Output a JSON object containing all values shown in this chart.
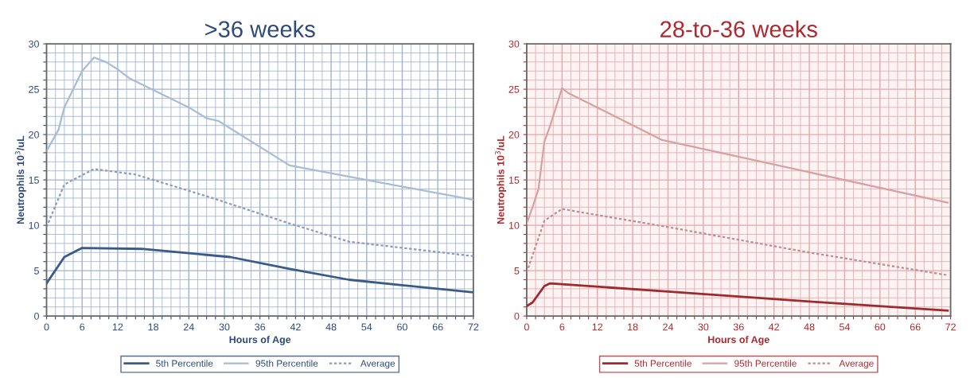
{
  "chart_data": [
    {
      "type": "line",
      "title": ">36 weeks",
      "xlabel": "Hours of Age",
      "ylabel": "Neutrophils 10$^{3}$/uL",
      "xlim": [
        0,
        72
      ],
      "xticks": [
        0,
        {
          "value": 1.5,
          "label": null
        },
        {
          "value": 3,
          "label": null
        },
        {
          "value": 4.5,
          "label": null
        },
        6,
        {
          "value": 7.5,
          "label": null
        },
        {
          "value": 9,
          "label": null
        },
        {
          "value": 10.5,
          "label": null
        },
        12,
        {
          "value": 13.5,
          "label": null
        },
        {
          "value": 15,
          "label": null
        },
        {
          "value": 16.5,
          "label": null
        },
        18,
        {
          "value": 19.5,
          "label": null
        },
        {
          "value": 21,
          "label": null
        },
        {
          "value": 22.5,
          "label": null
        },
        24,
        {
          "value": 25.5,
          "label": null
        },
        {
          "value": 27,
          "label": null
        },
        {
          "value": 28.5,
          "label": null
        },
        30,
        {
          "value": 31.5,
          "label": null
        },
        {
          "value": 33,
          "label": null
        },
        {
          "value": 34.5,
          "label": null
        },
        36,
        {
          "value": 37.5,
          "label": null
        },
        {
          "value": 39,
          "label": null
        },
        {
          "value": 40.5,
          "label": null
        },
        42,
        {
          "value": 43.5,
          "label": null
        },
        {
          "value": 45,
          "label": null
        },
        {
          "value": 46.5,
          "label": null
        },
        48,
        {
          "value": 49.5,
          "label": null
        },
        {
          "value": 51,
          "label": null
        },
        {
          "value": 52.5,
          "label": null
        },
        54,
        {
          "value": 55.5,
          "label": null
        },
        {
          "value": 57,
          "label": null
        },
        {
          "value": 58.5,
          "label": null
        },
        60,
        {
          "value": 61.5,
          "label": null
        },
        {
          "value": 63,
          "label": null
        },
        {
          "value": 64.5,
          "label": null
        },
        66,
        {
          "value": 67.5,
          "label": null
        },
        {
          "value": 69,
          "label": null
        },
        {
          "value": 70.5,
          "label": null
        },
        72
      ],
      "ylim": [
        0,
        30
      ],
      "yticks": [
        0,
        {
          "value": 1,
          "label": null
        },
        {
          "value": 2,
          "label": null
        },
        {
          "value": 3,
          "label": null
        },
        {
          "value": 4,
          "label": null
        },
        5,
        {
          "value": 6,
          "label": null
        },
        {
          "value": 7,
          "label": null
        },
        {
          "value": 8,
          "label": null
        },
        {
          "value": 9,
          "label": null
        },
        10,
        {
          "value": 11,
          "label": null
        },
        {
          "value": 12,
          "label": null
        },
        {
          "value": 13,
          "label": null
        },
        {
          "value": 14,
          "label": null
        },
        15,
        {
          "value": 16,
          "label": null
        },
        {
          "value": 17,
          "label": null
        },
        {
          "value": 18,
          "label": null
        },
        {
          "value": 19,
          "label": null
        },
        20,
        {
          "value": 21,
          "label": null
        },
        {
          "value": 22,
          "label": null
        },
        {
          "value": 23,
          "label": null
        },
        {
          "value": 24,
          "label": null
        },
        25,
        {
          "value": 26,
          "label": null
        },
        {
          "value": 27,
          "label": null
        },
        {
          "value": 28,
          "label": null
        },
        {
          "value": 29,
          "label": null
        },
        30
      ],
      "grid": true,
      "legend": "bottom",
      "series": [
        {
          "name": "5th Percentile",
          "color": "#3a5a8a",
          "line_style": "solid",
          "x": [
            0,
            3,
            6,
            16,
            31,
            41,
            51,
            72
          ],
          "values": [
            3.6,
            6.5,
            7.5,
            7.4,
            6.5,
            5.2,
            4.0,
            2.6
          ]
        },
        {
          "name": "95th Percentile",
          "color": "#a9bcd6",
          "line_style": "solid",
          "x": [
            0,
            2,
            3,
            4.5,
            6,
            8,
            10,
            12,
            14,
            24,
            27,
            29,
            41,
            54,
            72
          ],
          "values": [
            18.2,
            20.5,
            23,
            25,
            27,
            28.5,
            28,
            27.2,
            26.2,
            23,
            21.8,
            21.5,
            16.6,
            15,
            12.8
          ]
        },
        {
          "name": "Average",
          "color": "#8a9ab8",
          "line_style": "dotted",
          "x": [
            0,
            3,
            8,
            15,
            28,
            41,
            51,
            72
          ],
          "values": [
            9.8,
            14.5,
            16.2,
            15.6,
            13,
            10.2,
            8.2,
            6.6
          ]
        }
      ]
    },
    {
      "type": "line",
      "title": "28-to-36 weeks",
      "xlabel": "Hours of Age",
      "ylabel": "Neutrophils 10$^{3}$/uL",
      "xlim": [
        0,
        72
      ],
      "xticks": [
        0,
        {
          "value": 1.5,
          "label": null
        },
        {
          "value": 3,
          "label": null
        },
        {
          "value": 4.5,
          "label": null
        },
        6,
        {
          "value": 7.5,
          "label": null
        },
        {
          "value": 9,
          "label": null
        },
        {
          "value": 10.5,
          "label": null
        },
        12,
        {
          "value": 13.5,
          "label": null
        },
        {
          "value": 15,
          "label": null
        },
        {
          "value": 16.5,
          "label": null
        },
        18,
        {
          "value": 19.5,
          "label": null
        },
        {
          "value": 21,
          "label": null
        },
        {
          "value": 22.5,
          "label": null
        },
        24,
        {
          "value": 25.5,
          "label": null
        },
        {
          "value": 27,
          "label": null
        },
        {
          "value": 28.5,
          "label": null
        },
        30,
        {
          "value": 31.5,
          "label": null
        },
        {
          "value": 33,
          "label": null
        },
        {
          "value": 34.5,
          "label": null
        },
        36,
        {
          "value": 37.5,
          "label": null
        },
        {
          "value": 39,
          "label": null
        },
        {
          "value": 40.5,
          "label": null
        },
        42,
        {
          "value": 43.5,
          "label": null
        },
        {
          "value": 45,
          "label": null
        },
        {
          "value": 46.5,
          "label": null
        },
        48,
        {
          "value": 49.5,
          "label": null
        },
        {
          "value": 51,
          "label": null
        },
        {
          "value": 52.5,
          "label": null
        },
        54,
        {
          "value": 55.5,
          "label": null
        },
        {
          "value": 57,
          "label": null
        },
        {
          "value": 58.5,
          "label": null
        },
        60,
        {
          "value": 61.5,
          "label": null
        },
        {
          "value": 63,
          "label": null
        },
        {
          "value": 64.5,
          "label": null
        },
        66,
        {
          "value": 67.5,
          "label": null
        },
        {
          "value": 69,
          "label": null
        },
        {
          "value": 70.5,
          "label": null
        },
        72
      ],
      "ylim": [
        0,
        30
      ],
      "yticks": [
        0,
        {
          "value": 1,
          "label": null
        },
        {
          "value": 2,
          "label": null
        },
        {
          "value": 3,
          "label": null
        },
        {
          "value": 4,
          "label": null
        },
        5,
        {
          "value": 6,
          "label": null
        },
        {
          "value": 7,
          "label": null
        },
        {
          "value": 8,
          "label": null
        },
        {
          "value": 9,
          "label": null
        },
        10,
        {
          "value": 11,
          "label": null
        },
        {
          "value": 12,
          "label": null
        },
        {
          "value": 13,
          "label": null
        },
        {
          "value": 14,
          "label": null
        },
        15,
        {
          "value": 16,
          "label": null
        },
        {
          "value": 17,
          "label": null
        },
        {
          "value": 18,
          "label": null
        },
        {
          "value": 19,
          "label": null
        },
        20,
        {
          "value": 21,
          "label": null
        },
        {
          "value": 22,
          "label": null
        },
        {
          "value": 23,
          "label": null
        },
        {
          "value": 24,
          "label": null
        },
        25,
        {
          "value": 26,
          "label": null
        },
        {
          "value": 27,
          "label": null
        },
        {
          "value": 28,
          "label": null
        },
        {
          "value": 29,
          "label": null
        },
        30
      ],
      "grid": true,
      "legend": "bottom",
      "series": [
        {
          "name": "5th Percentile",
          "color": "#9e2a2f",
          "line_style": "solid",
          "x": [
            0,
            1,
            2,
            3,
            4,
            6,
            24,
            48,
            71.5
          ],
          "values": [
            1.1,
            1.5,
            2.4,
            3.3,
            3.6,
            3.5,
            2.7,
            1.6,
            0.6
          ]
        },
        {
          "name": "95th Percentile",
          "color": "#d9a0a3",
          "line_style": "solid",
          "x": [
            0,
            1,
            2,
            3,
            4,
            6,
            7,
            23,
            71.5
          ],
          "values": [
            10.2,
            12,
            14,
            19.2,
            21,
            25.1,
            24.6,
            19.4,
            12.5
          ]
        },
        {
          "name": "Average",
          "color": "#c08a8e",
          "line_style": "dotted",
          "x": [
            0,
            3,
            6,
            24,
            48,
            71.5
          ],
          "values": [
            4.8,
            10.5,
            11.8,
            9.8,
            7,
            4.5
          ]
        }
      ]
    }
  ]
}
